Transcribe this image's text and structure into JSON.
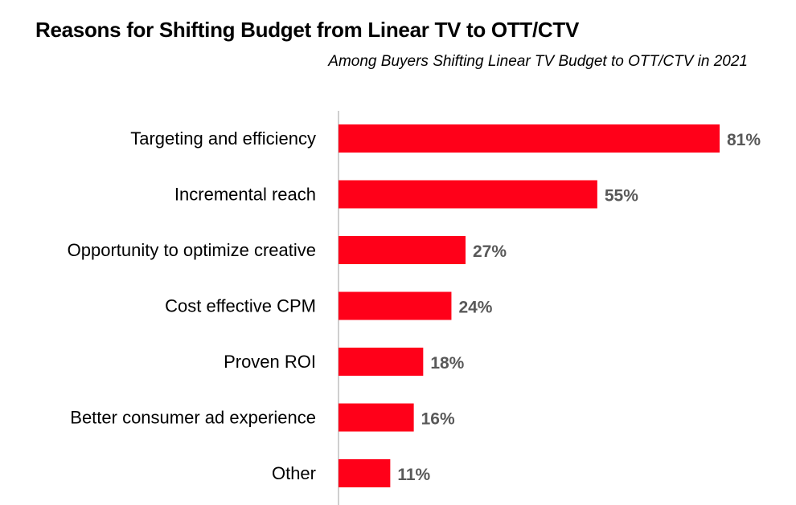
{
  "chart_data": {
    "type": "bar",
    "orientation": "horizontal",
    "title": "Reasons for Shifting Budget from Linear TV to OTT/CTV",
    "subtitle": "Among Buyers Shifting Linear TV Budget to OTT/CTV in 2021",
    "categories": [
      "Targeting and efficiency",
      "Incremental reach",
      "Opportunity to optimize creative",
      "Cost effective CPM",
      "Proven ROI",
      "Better consumer ad experience",
      "Other"
    ],
    "values": [
      81,
      55,
      27,
      24,
      18,
      16,
      11
    ],
    "value_labels": [
      "81%",
      "55%",
      "27%",
      "24%",
      "18%",
      "16%",
      "11%"
    ],
    "xlim": [
      0,
      81
    ],
    "grid": false,
    "bar_color": "#ff0019",
    "label_color": "#595959",
    "axis_color": "#bfbfbf"
  }
}
